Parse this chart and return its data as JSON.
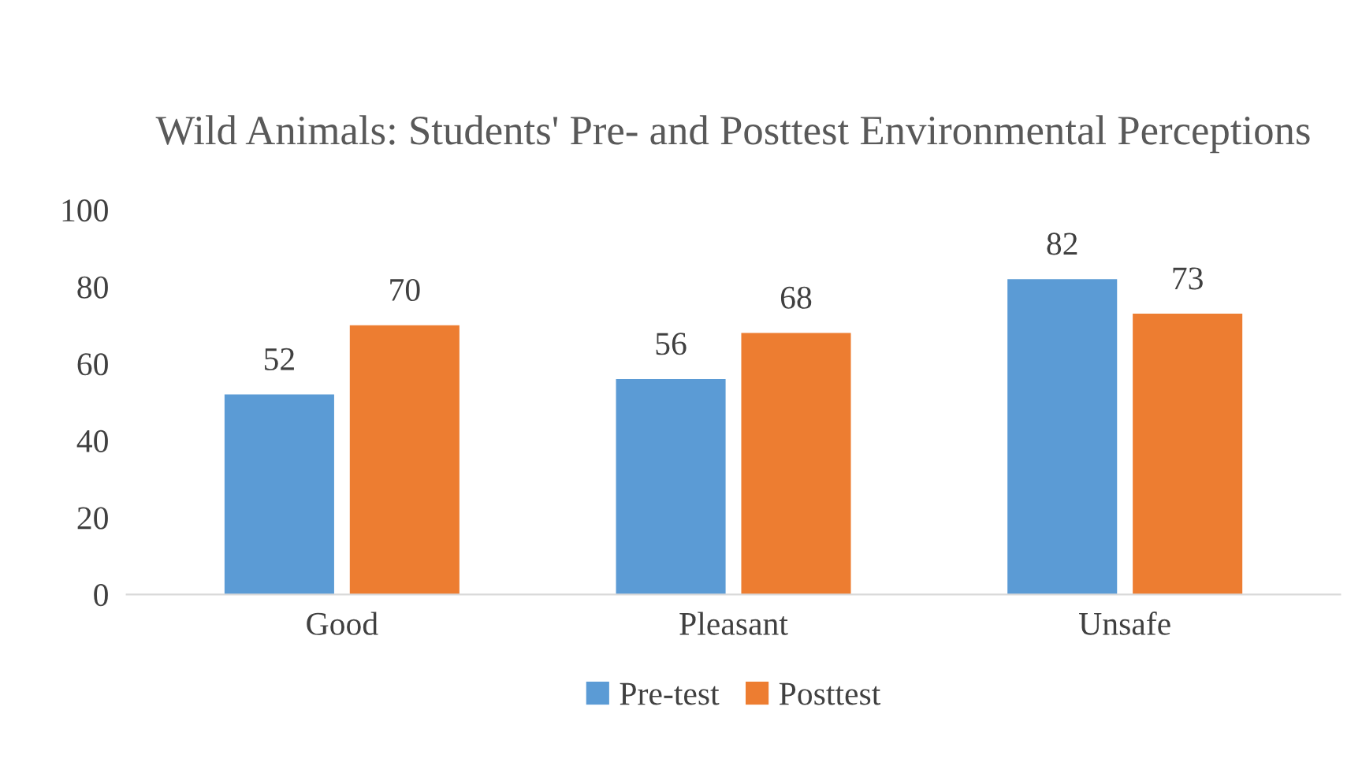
{
  "chart_data": {
    "type": "bar",
    "title": "Wild Animals: Students' Pre- and Posttest Environmental Perceptions",
    "categories": [
      "Good",
      "Pleasant",
      "Unsafe"
    ],
    "series": [
      {
        "name": "Pre-test",
        "color": "#5b9bd5",
        "values": [
          52,
          56,
          82
        ]
      },
      {
        "name": "Posttest",
        "color": "#ed7d31",
        "values": [
          70,
          68,
          73
        ]
      }
    ],
    "ylim": [
      0,
      100
    ],
    "yticks": [
      0,
      20,
      40,
      60,
      80,
      100
    ],
    "grid": false,
    "legend": "bottom",
    "data_labels": true
  }
}
